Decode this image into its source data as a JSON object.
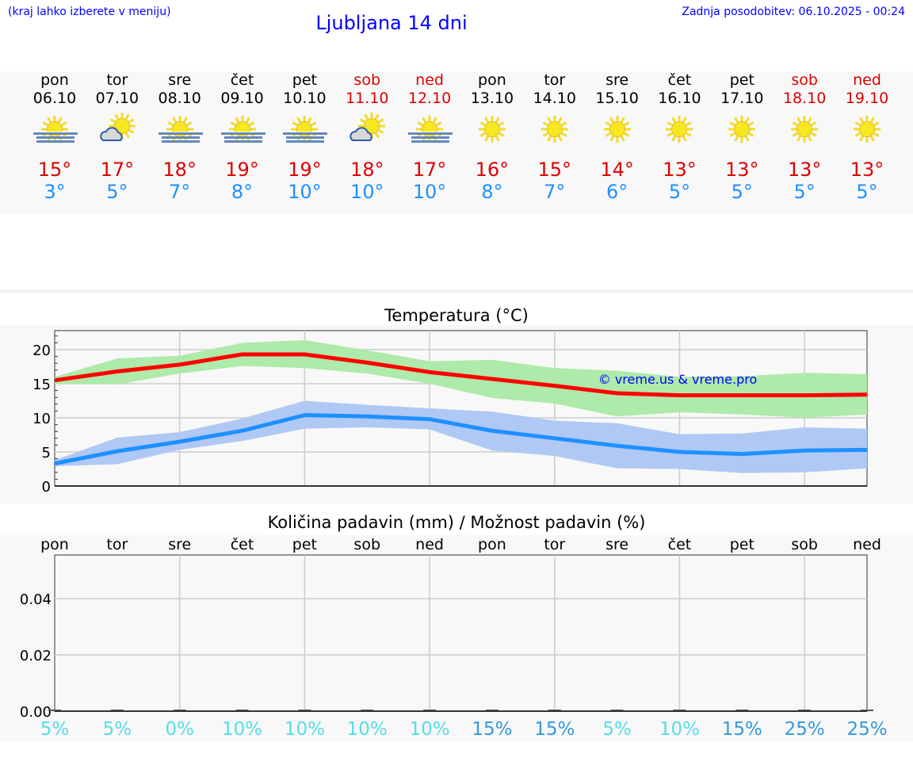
{
  "header": {
    "hint": "(kraj lahko izberete v meniju)",
    "title": "Ljubljana 14 dni",
    "updated": "Zadnja posodobitev: 06.10.2025 - 00:24"
  },
  "days": [
    {
      "name": "pon",
      "date": "06.10",
      "icon": "sun-fog-icon",
      "max": "15°",
      "min": "3°",
      "weekend": false
    },
    {
      "name": "tor",
      "date": "07.10",
      "icon": "sun-cloud-icon",
      "max": "17°",
      "min": "5°",
      "weekend": false
    },
    {
      "name": "sre",
      "date": "08.10",
      "icon": "sun-fog-icon",
      "max": "18°",
      "min": "7°",
      "weekend": false
    },
    {
      "name": "čet",
      "date": "09.10",
      "icon": "sun-fog-icon",
      "max": "19°",
      "min": "8°",
      "weekend": false
    },
    {
      "name": "pet",
      "date": "10.10",
      "icon": "sun-fog-icon",
      "max": "19°",
      "min": "10°",
      "weekend": false
    },
    {
      "name": "sob",
      "date": "11.10",
      "icon": "sun-cloud-icon",
      "max": "18°",
      "min": "10°",
      "weekend": true
    },
    {
      "name": "ned",
      "date": "12.10",
      "icon": "sun-fog-icon",
      "max": "17°",
      "min": "10°",
      "weekend": true
    },
    {
      "name": "pon",
      "date": "13.10",
      "icon": "sun-icon",
      "max": "16°",
      "min": "8°",
      "weekend": false
    },
    {
      "name": "tor",
      "date": "14.10",
      "icon": "sun-icon",
      "max": "15°",
      "min": "7°",
      "weekend": false
    },
    {
      "name": "sre",
      "date": "15.10",
      "icon": "sun-icon",
      "max": "14°",
      "min": "6°",
      "weekend": false
    },
    {
      "name": "čet",
      "date": "16.10",
      "icon": "sun-icon",
      "max": "13°",
      "min": "5°",
      "weekend": false
    },
    {
      "name": "pet",
      "date": "17.10",
      "icon": "sun-icon",
      "max": "13°",
      "min": "5°",
      "weekend": false
    },
    {
      "name": "sob",
      "date": "18.10",
      "icon": "sun-icon",
      "max": "13°",
      "min": "5°",
      "weekend": true
    },
    {
      "name": "ned",
      "date": "19.10",
      "icon": "sun-icon",
      "max": "13°",
      "min": "5°",
      "weekend": true
    }
  ],
  "colors": {
    "max": "#ff0000",
    "min": "#1e90ff",
    "max_band": "#aeeaa9",
    "min_band": "#b0c8f4",
    "prob_low": "#55dde8",
    "prob_high": "#3399dd"
  },
  "chart_data": [
    {
      "type": "line",
      "title": "Temperatura (°C)",
      "watermark": "© vreme.us & vreme.pro",
      "ylim": [
        0,
        23
      ],
      "yticks": [
        0,
        5,
        10,
        15,
        20
      ],
      "grid": true,
      "x": [
        "06.10",
        "07.10",
        "08.10",
        "09.10",
        "10.10",
        "11.10",
        "12.10",
        "13.10",
        "14.10",
        "15.10",
        "16.10",
        "17.10",
        "18.10",
        "19.10"
      ],
      "series": [
        {
          "role": "max",
          "values": [
            15.5,
            16.8,
            17.8,
            19.3,
            19.3,
            18.1,
            16.7,
            15.7,
            14.7,
            13.6,
            13.3,
            13.3,
            13.3,
            13.4
          ],
          "band_upper": [
            16,
            18.7,
            19.1,
            21,
            21.4,
            19.9,
            18.3,
            18.5,
            17.3,
            16.9,
            16,
            16.1,
            16.6,
            16.4
          ],
          "band_lower": [
            15,
            14.9,
            16.5,
            17.6,
            17.3,
            16.5,
            15,
            12.9,
            12.1,
            10.2,
            10.8,
            10.5,
            10,
            10.5
          ]
        },
        {
          "role": "min",
          "values": [
            3.3,
            5.1,
            6.5,
            8.1,
            10.4,
            10.2,
            9.8,
            8.1,
            7,
            5.9,
            5,
            4.7,
            5.2,
            5.3
          ],
          "band_upper": [
            3.8,
            7.1,
            7.9,
            9.9,
            12.5,
            11.9,
            11.4,
            10.9,
            9.6,
            9.2,
            7.6,
            7.7,
            8.6,
            8.4
          ],
          "band_lower": [
            2.9,
            3.2,
            5.3,
            6.6,
            8.4,
            8.6,
            8.3,
            5.2,
            4.4,
            2.6,
            2.5,
            1.9,
            2,
            2.6
          ]
        }
      ]
    },
    {
      "type": "bar",
      "title": "Količina padavin (mm) / Možnost padavin (%)",
      "ylim": [
        0,
        0.055
      ],
      "yticks": [
        "0.00",
        "0.02",
        "0.04"
      ],
      "grid": true,
      "categories": [
        "pon",
        "tor",
        "sre",
        "čet",
        "pet",
        "sob",
        "ned",
        "pon",
        "tor",
        "sre",
        "čet",
        "pet",
        "sob",
        "ned"
      ],
      "values": [
        0,
        0,
        0,
        0,
        0,
        0,
        0,
        0,
        0,
        0,
        0,
        0,
        0,
        0
      ],
      "probability": [
        "5%",
        "5%",
        "0%",
        "10%",
        "10%",
        "10%",
        "10%",
        "15%",
        "15%",
        "5%",
        "10%",
        "15%",
        "25%",
        "25%"
      ]
    }
  ]
}
